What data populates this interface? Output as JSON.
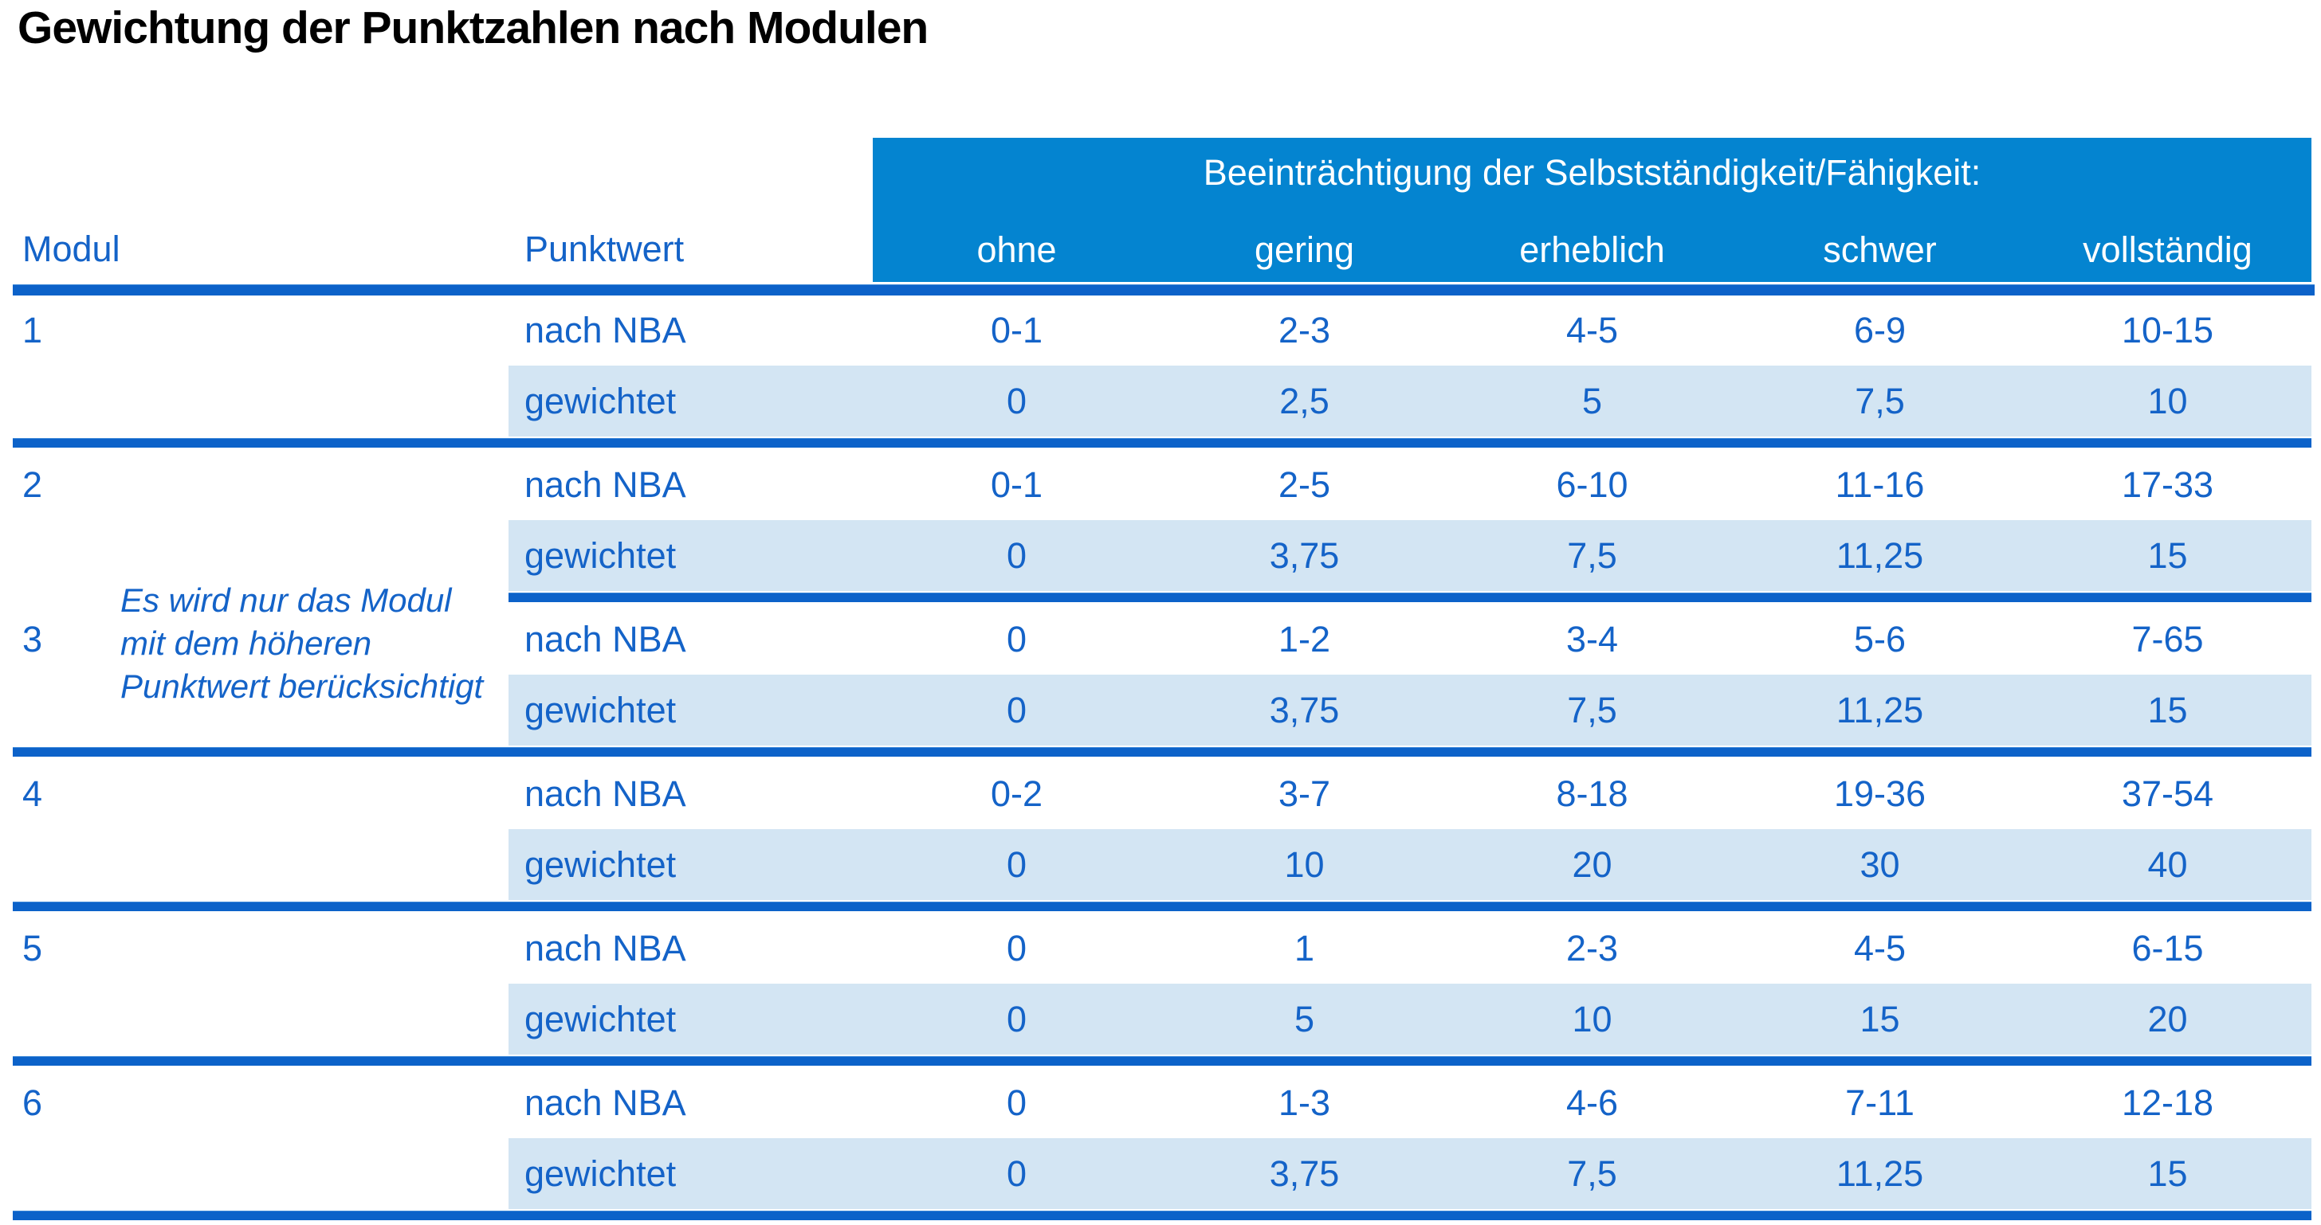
{
  "title": "Gewichtung der Punktzahlen nach Modulen",
  "colors": {
    "header_band_blue": "#0484d0",
    "rule_blue": "#0c62c9",
    "shaded_row_blue": "#d3e5f3",
    "text_blue": "#1463c8",
    "header_text_white": "#ffffff",
    "title_black": "#000000"
  },
  "table": {
    "impairment_header": "Beeinträchtigung der Selbstständigkeit/Fähigkeit:",
    "severity_levels": [
      "ohne",
      "gering",
      "erheblich",
      "schwer",
      "vollständig"
    ],
    "col_headers": {
      "modul": "Modul",
      "punktwert": "Punktwert"
    },
    "row_labels": {
      "nba": "nach NBA",
      "weighted": "gewichtet"
    },
    "note": {
      "lines": [
        "Es wird nur das Modul",
        "mit dem höheren",
        "Punktwert berücksichtigt"
      ]
    },
    "modules": [
      {
        "id": "1",
        "nba": [
          "0-1",
          "2-3",
          "4-5",
          "6-9",
          "10-15"
        ],
        "weighted": [
          "0",
          "2,5",
          "5",
          "7,5",
          "10"
        ]
      },
      {
        "id": "2",
        "nba": [
          "0-1",
          "2-5",
          "6-10",
          "11-16",
          "17-33"
        ],
        "weighted": [
          "0",
          "3,75",
          "7,5",
          "11,25",
          "15"
        ]
      },
      {
        "id": "3",
        "nba": [
          "0",
          "1-2",
          "3-4",
          "5-6",
          "7-65"
        ],
        "weighted": [
          "0",
          "3,75",
          "7,5",
          "11,25",
          "15"
        ]
      },
      {
        "id": "4",
        "nba": [
          "0-2",
          "3-7",
          "8-18",
          "19-36",
          "37-54"
        ],
        "weighted": [
          "0",
          "10",
          "20",
          "30",
          "40"
        ]
      },
      {
        "id": "5",
        "nba": [
          "0",
          "1",
          "2-3",
          "4-5",
          "6-15"
        ],
        "weighted": [
          "0",
          "5",
          "10",
          "15",
          "20"
        ]
      },
      {
        "id": "6",
        "nba": [
          "0",
          "1-3",
          "4-6",
          "7-11",
          "12-18"
        ],
        "weighted": [
          "0",
          "3,75",
          "7,5",
          "11,25",
          "15"
        ]
      }
    ]
  }
}
